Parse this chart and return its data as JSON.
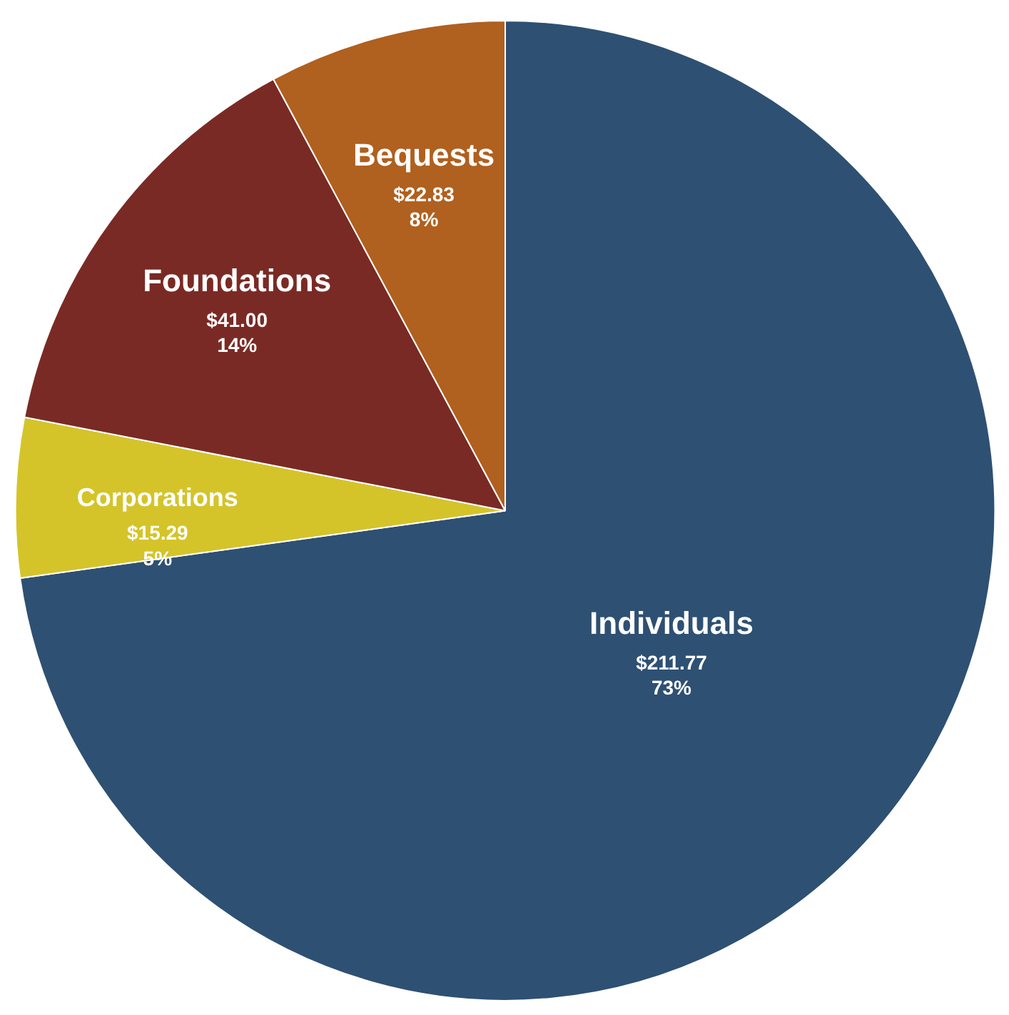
{
  "chart_data": {
    "type": "pie",
    "categories": [
      "Individuals",
      "Corporations",
      "Foundations",
      "Bequests"
    ],
    "values": [
      211.77,
      15.29,
      41.0,
      22.83
    ],
    "colors": [
      "#2e5073",
      "#d4c42a",
      "#7a2a24",
      "#b0601f"
    ],
    "value_labels": [
      "$211.77\n73%",
      "$15.29\n5%",
      "$41.00\n14%",
      "$22.83\n8%"
    ]
  }
}
